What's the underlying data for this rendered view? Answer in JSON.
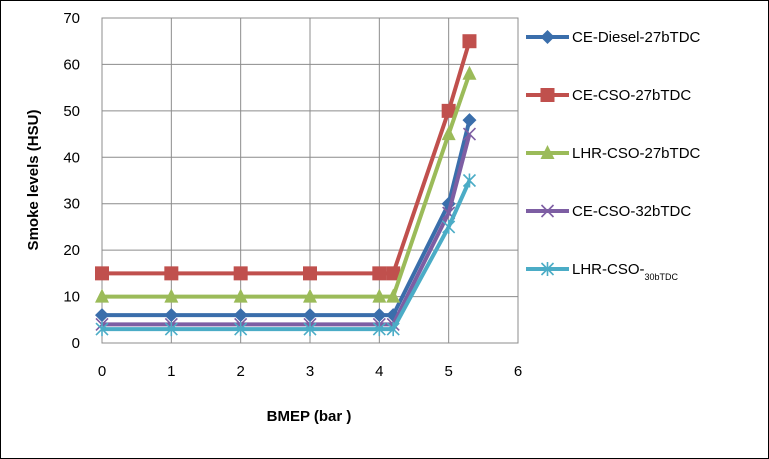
{
  "chart_data": {
    "type": "line",
    "xlabel": "BMEP  (bar )",
    "ylabel": "Smoke levels (HSU)",
    "xlim": [
      0,
      6
    ],
    "ylim": [
      0,
      70
    ],
    "xticks": [
      0,
      1,
      2,
      3,
      4,
      5,
      6
    ],
    "yticks": [
      0,
      10,
      20,
      30,
      40,
      50,
      60,
      70
    ],
    "grid": true,
    "legend_position": "right",
    "series": [
      {
        "name": "CE-Diesel-27bTDC",
        "color": "#3a6eab",
        "marker": "diamond",
        "x": [
          0,
          1,
          2,
          3,
          4,
          4.2,
          5,
          5.3
        ],
        "y": [
          6,
          6,
          6,
          6,
          6,
          6,
          30,
          48
        ]
      },
      {
        "name": "CE-CSO-27bTDC",
        "color": "#c0504d",
        "marker": "square",
        "x": [
          0,
          1,
          2,
          3,
          4,
          4.2,
          5,
          5.3
        ],
        "y": [
          15,
          15,
          15,
          15,
          15,
          15,
          50,
          65
        ]
      },
      {
        "name": "LHR-CSO-27bTDC",
        "color": "#9bbb59",
        "marker": "triangle",
        "x": [
          0,
          1,
          2,
          3,
          4,
          4.2,
          5,
          5.3
        ],
        "y": [
          10,
          10,
          10,
          10,
          10,
          10,
          45,
          58
        ]
      },
      {
        "name": "CE-CSO-32bTDC",
        "color": "#7d5ea3",
        "marker": "x",
        "x": [
          0,
          1,
          2,
          3,
          4,
          4.2,
          5,
          5.3
        ],
        "y": [
          4,
          4,
          4,
          4,
          4,
          4,
          28,
          45
        ]
      },
      {
        "name": "LHR-CSO-",
        "name_subscript": "30bTDC",
        "color": "#4bacc6",
        "marker": "star",
        "x": [
          0,
          1,
          2,
          3,
          4,
          4.2,
          5,
          5.3
        ],
        "y": [
          3,
          3,
          3,
          3,
          3,
          3,
          25,
          35
        ]
      }
    ]
  }
}
